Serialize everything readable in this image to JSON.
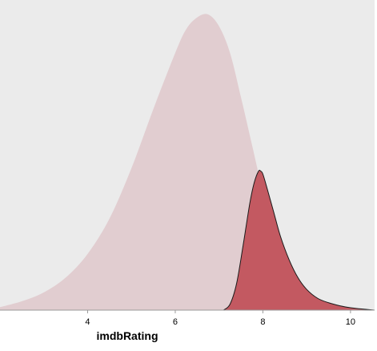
{
  "chart_data": {
    "type": "area",
    "title": "",
    "xlabel": "imdbRating",
    "ylabel": "",
    "xlim": [
      2,
      10.55
    ],
    "ylim": [
      0,
      1.0
    ],
    "grid": false,
    "legend": "none",
    "x_ticks": [
      4,
      6,
      8,
      10
    ],
    "series": [
      {
        "color": "#e1cdd0",
        "stroke": "none",
        "x": [
          2.0,
          2.5,
          3.0,
          3.5,
          4.0,
          4.5,
          5.0,
          5.5,
          6.0,
          6.25,
          6.5,
          6.75,
          7.0,
          7.25,
          7.5,
          7.75,
          8.0,
          8.25,
          8.5,
          8.75,
          9.0,
          9.25,
          9.5,
          10.0,
          10.55
        ],
        "values": [
          0.01,
          0.03,
          0.06,
          0.11,
          0.19,
          0.31,
          0.48,
          0.68,
          0.87,
          0.95,
          0.99,
          1.0,
          0.96,
          0.87,
          0.72,
          0.56,
          0.4,
          0.26,
          0.16,
          0.09,
          0.05,
          0.025,
          0.012,
          0.003,
          0.0
        ]
      },
      {
        "color": "#c35961",
        "stroke": "#1a1a1a",
        "x": [
          7.1,
          7.25,
          7.4,
          7.55,
          7.7,
          7.8,
          7.9,
          7.95,
          8.0,
          8.1,
          8.25,
          8.4,
          8.6,
          8.8,
          9.0,
          9.25,
          9.5,
          9.75,
          10.0,
          10.25,
          10.55
        ],
        "values": [
          0.0,
          0.02,
          0.09,
          0.22,
          0.36,
          0.43,
          0.47,
          0.47,
          0.46,
          0.41,
          0.33,
          0.25,
          0.17,
          0.11,
          0.07,
          0.04,
          0.025,
          0.015,
          0.008,
          0.004,
          0.0
        ]
      }
    ]
  }
}
